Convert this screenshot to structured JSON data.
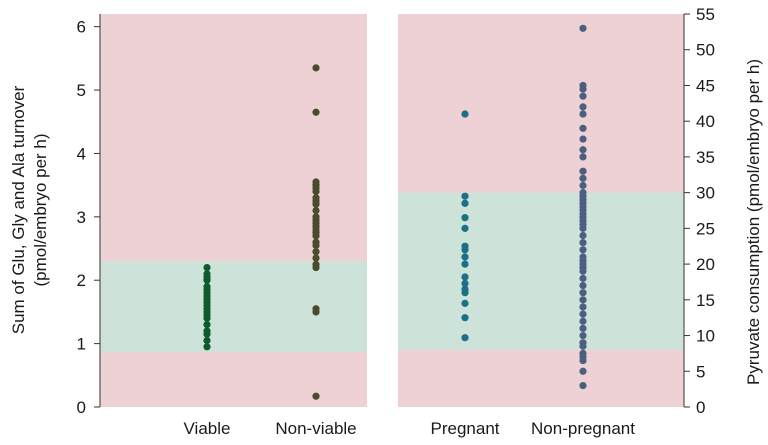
{
  "colors": {
    "zone_outer": "#edd1d4",
    "zone_inner": "#cde3d9",
    "viable": "#0f5a2c",
    "non_viable": "#4a4a2c",
    "pregnant": "#1b6f86",
    "non_pregnant": "#4d5f80",
    "axis": "#333333"
  },
  "chart_data": [
    {
      "type": "scatter",
      "panel": "left",
      "ylabel_lines": [
        "Sum of Glu, Gly and Ala turnover",
        "(pmol/embryo per h)"
      ],
      "ylim": [
        0,
        6.2
      ],
      "yticks": [
        0,
        1,
        2,
        3,
        4,
        5,
        6
      ],
      "categories": [
        "Viable",
        "Non-viable"
      ],
      "normal_range": [
        0.87,
        2.3
      ],
      "series": [
        {
          "category": "Viable",
          "color_key": "viable",
          "values": [
            0.95,
            1.05,
            1.15,
            1.2,
            1.3,
            1.4,
            1.45,
            1.5,
            1.55,
            1.6,
            1.65,
            1.7,
            1.75,
            1.8,
            1.85,
            1.9,
            2.0,
            2.05,
            2.1,
            2.2
          ]
        },
        {
          "category": "Non-viable",
          "color_key": "non_viable",
          "values": [
            0.17,
            1.5,
            1.55,
            2.2,
            2.25,
            2.35,
            2.45,
            2.55,
            2.6,
            2.7,
            2.75,
            2.8,
            2.85,
            2.9,
            2.95,
            3.0,
            3.1,
            3.2,
            3.25,
            3.3,
            3.4,
            3.45,
            3.5,
            3.55,
            4.65,
            5.35
          ]
        }
      ]
    },
    {
      "type": "scatter",
      "panel": "right",
      "ylabel": "Pyruvate consumption (pmol/embryo per h)",
      "ylim": [
        0,
        55
      ],
      "yticks": [
        0,
        5,
        10,
        15,
        20,
        25,
        30,
        35,
        40,
        45,
        50,
        55
      ],
      "categories": [
        "Pregnant",
        "Non-pregnant"
      ],
      "normal_range": [
        8,
        30
      ],
      "series": [
        {
          "category": "Pregnant",
          "color_key": "pregnant",
          "values": [
            9.7,
            12.5,
            14.5,
            16,
            16.5,
            17.3,
            18.2,
            20,
            21,
            22,
            22.5,
            25,
            26.5,
            28.5,
            29.5,
            41
          ]
        },
        {
          "category": "Non-pregnant",
          "color_key": "non_pregnant",
          "values": [
            3,
            5,
            6.5,
            7,
            7.5,
            8.5,
            9,
            10,
            11,
            12,
            13,
            14,
            15,
            16,
            17,
            18,
            19,
            19.5,
            20,
            20.5,
            21,
            22,
            23,
            24,
            25,
            25.5,
            26,
            26.5,
            27,
            27.5,
            28,
            28.5,
            29,
            29.5,
            30,
            31,
            32,
            33,
            35,
            36,
            37.5,
            39,
            41,
            42,
            43.5,
            44.5,
            45,
            53
          ]
        }
      ]
    }
  ]
}
